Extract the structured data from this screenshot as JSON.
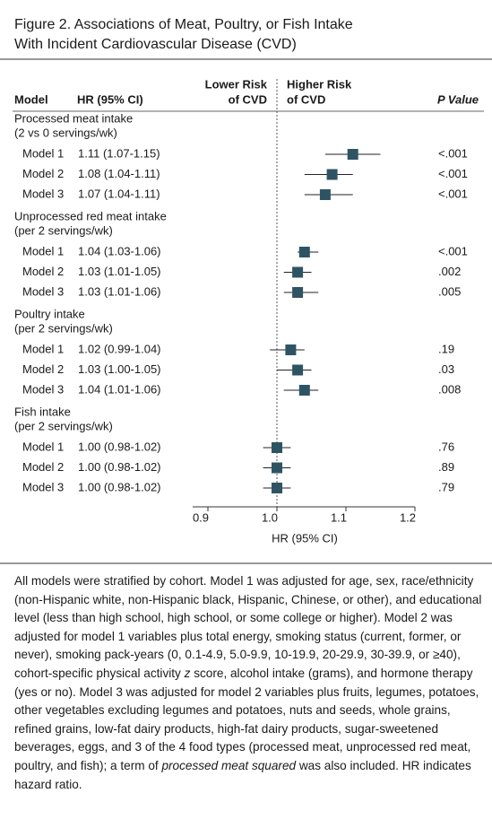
{
  "chart_data": {
    "type": "forest",
    "title": [
      "Figure 2. Associations of Meat, Poultry, or Fish Intake",
      "With Incident Cardiovascular Disease (CVD)"
    ],
    "column_headers": {
      "model": "Model",
      "hr": "HR (95% CI)",
      "p": "P Value"
    },
    "direction_labels": [
      [
        "Lower Risk",
        "of CVD"
      ],
      [
        "Higher Risk",
        "of CVD"
      ]
    ],
    "xlabel": "HR (95% CI)",
    "xlim": [
      0.9,
      1.2
    ],
    "xticks": [
      0.9,
      {
        "value": 1,
        "label": "1.0"
      },
      1.1,
      1.2
    ],
    "reference": 1,
    "color": "#2e5463",
    "groups": [
      {
        "label": [
          "Processed meat intake",
          "(2 vs 0 servings/wk)"
        ],
        "rows": [
          {
            "model": "Model 1",
            "hr_label": "1.11 (1.07-1.15)",
            "hr": 1.11,
            "ci": [
              1.07,
              1.15
            ],
            "p": "<.001"
          },
          {
            "model": "Model 2",
            "hr_label": "1.08 (1.04-1.11)",
            "hr": 1.08,
            "ci": [
              1.04,
              1.11
            ],
            "p": "<.001"
          },
          {
            "model": "Model 3",
            "hr_label": "1.07 (1.04-1.11)",
            "hr": 1.07,
            "ci": [
              1.04,
              1.11
            ],
            "p": "<.001"
          }
        ]
      },
      {
        "label": [
          "Unprocessed red meat intake",
          "(per 2 servings/wk)"
        ],
        "rows": [
          {
            "model": "Model 1",
            "hr_label": "1.04 (1.03-1.06)",
            "hr": 1.04,
            "ci": [
              1.03,
              1.06
            ],
            "p": "<.001"
          },
          {
            "model": "Model 2",
            "hr_label": "1.03 (1.01-1.05)",
            "hr": 1.03,
            "ci": [
              1.01,
              1.05
            ],
            "p": ".002"
          },
          {
            "model": "Model 3",
            "hr_label": "1.03 (1.01-1.06)",
            "hr": 1.03,
            "ci": [
              1.01,
              1.06
            ],
            "p": ".005"
          }
        ]
      },
      {
        "label": [
          "Poultry intake",
          "(per 2 servings/wk)"
        ],
        "rows": [
          {
            "model": "Model 1",
            "hr_label": "1.02 (0.99-1.04)",
            "hr": 1.02,
            "ci": [
              0.99,
              1.04
            ],
            "p": ".19"
          },
          {
            "model": "Model 2",
            "hr_label": "1.03 (1.00-1.05)",
            "hr": 1.03,
            "ci": [
              1.0,
              1.05
            ],
            "p": ".03"
          },
          {
            "model": "Model 3",
            "hr_label": "1.04 (1.01-1.06)",
            "hr": 1.04,
            "ci": [
              1.01,
              1.06
            ],
            "p": ".008"
          }
        ]
      },
      {
        "label": [
          "Fish intake",
          "(per 2 servings/wk)"
        ],
        "rows": [
          {
            "model": "Model 1",
            "hr_label": "1.00 (0.98-1.02)",
            "hr": 1.0,
            "ci": [
              0.98,
              1.02
            ],
            "p": ".76"
          },
          {
            "model": "Model 2",
            "hr_label": "1.00 (0.98-1.02)",
            "hr": 1.0,
            "ci": [
              0.98,
              1.02
            ],
            "p": ".89"
          },
          {
            "model": "Model 3",
            "hr_label": "1.00 (0.98-1.02)",
            "hr": 1.0,
            "ci": [
              0.98,
              1.02
            ],
            "p": ".79"
          }
        ]
      }
    ],
    "note": [
      "All models were stratified by cohort. Model 1 was adjusted for age, sex, race/ethnicity (non-Hispanic white, non-Hispanic black, Hispanic, Chinese, or other), and educational level (less than high school, high school, or some college or higher). Model 2 was adjusted for model 1 variables plus total energy, smoking status (current, former, or never), smoking pack-years (0, 0.1-4.9, 5.0-9.9, 10-19.9, 20-29.9, 30-39.9, or ≥40), cohort-specific physical activity ",
      "z",
      " score, alcohol intake (grams), and hormone therapy (yes or no). Model 3 was adjusted for model 2 variables plus fruits, legumes, potatoes, other vegetables excluding legumes and potatoes, nuts and seeds, whole grains, refined grains, low-fat dairy products, high-fat dairy products, sugar-sweetened beverages, eggs, and 3 of the 4 food types (processed meat, unprocessed red meat, poultry, and fish); a term of ",
      "processed meat squared",
      " was also included. HR indicates hazard ratio."
    ]
  }
}
